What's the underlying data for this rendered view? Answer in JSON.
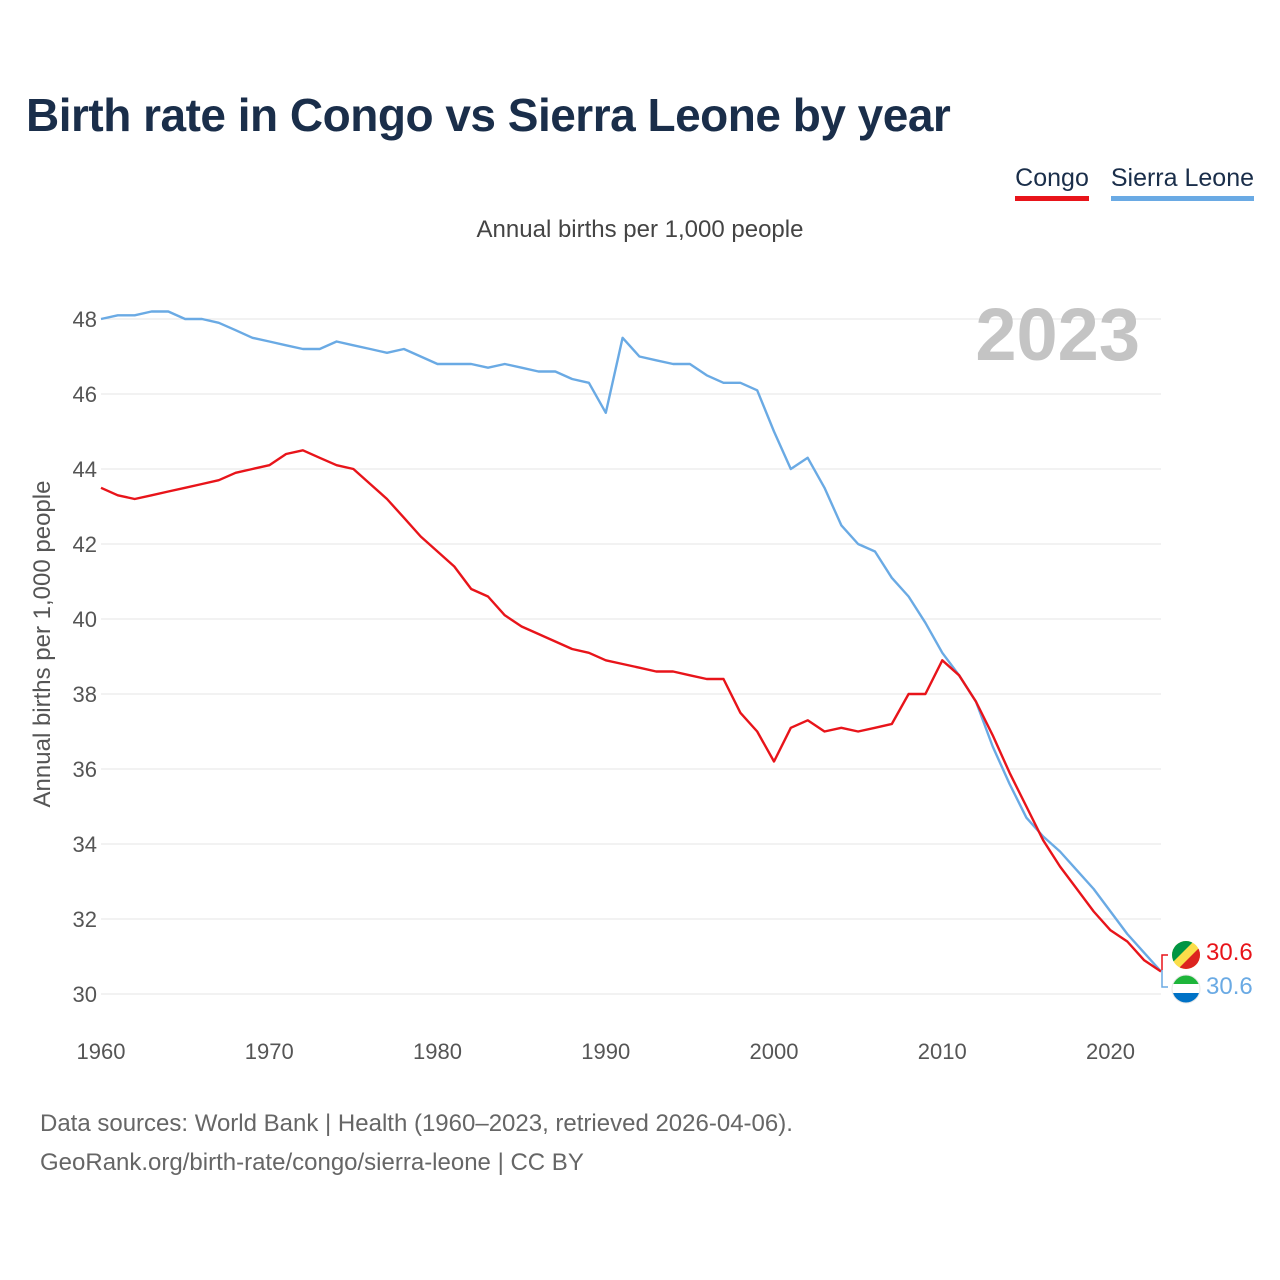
{
  "title": "Birth rate in Congo vs Sierra Leone by year",
  "subtitle": "Annual births per 1,000 people",
  "footer": {
    "line1": "Data sources: World Bank | Health (1960–2023, retrieved 2026-04-06).",
    "line2": "GeoRank.org/birth-rate/congo/sierra-leone | CC BY"
  },
  "colors": {
    "congo": "#e8141a",
    "sierra_leone": "#6aaae4",
    "title": "#1a2e4a",
    "grid": "#e4e4e4"
  },
  "chart_data": {
    "type": "line",
    "title": "Birth rate in Congo vs Sierra Leone by year",
    "subtitle": "Annual births per 1,000 people",
    "xlabel": "",
    "ylabel": "Annual births per 1,000 people",
    "xlim": [
      1960,
      2023
    ],
    "ylim": [
      30,
      48
    ],
    "xticks": [
      1960,
      1970,
      1980,
      1990,
      2000,
      2010,
      2020
    ],
    "yticks": [
      30,
      32,
      34,
      36,
      38,
      40,
      42,
      44,
      46,
      48
    ],
    "year_label": "2023",
    "legend_position": "top-right",
    "grid": true,
    "x": [
      1960,
      1961,
      1962,
      1963,
      1964,
      1965,
      1966,
      1967,
      1968,
      1969,
      1970,
      1971,
      1972,
      1973,
      1974,
      1975,
      1976,
      1977,
      1978,
      1979,
      1980,
      1981,
      1982,
      1983,
      1984,
      1985,
      1986,
      1987,
      1988,
      1989,
      1990,
      1991,
      1992,
      1993,
      1994,
      1995,
      1996,
      1997,
      1998,
      1999,
      2000,
      2001,
      2002,
      2003,
      2004,
      2005,
      2006,
      2007,
      2008,
      2009,
      2010,
      2011,
      2012,
      2013,
      2014,
      2015,
      2016,
      2017,
      2018,
      2019,
      2020,
      2021,
      2022,
      2023
    ],
    "series": [
      {
        "name": "Congo",
        "color": "#e8141a",
        "end_label": "30.6",
        "values": [
          43.5,
          43.3,
          43.2,
          43.3,
          43.4,
          43.5,
          43.6,
          43.7,
          43.9,
          44.0,
          44.1,
          44.4,
          44.5,
          44.3,
          44.1,
          44.0,
          43.6,
          43.2,
          42.7,
          42.2,
          41.8,
          41.4,
          40.8,
          40.6,
          40.1,
          39.8,
          39.6,
          39.4,
          39.2,
          39.1,
          38.9,
          38.8,
          38.7,
          38.6,
          38.6,
          38.5,
          38.4,
          38.4,
          37.5,
          37.0,
          36.2,
          37.1,
          37.3,
          37.0,
          37.1,
          37.0,
          37.1,
          37.2,
          38.0,
          38.0,
          38.9,
          38.5,
          37.8,
          36.9,
          35.9,
          35.0,
          34.1,
          33.4,
          32.8,
          32.2,
          31.7,
          31.4,
          30.9,
          30.6
        ]
      },
      {
        "name": "Sierra Leone",
        "color": "#6aaae4",
        "end_label": "30.6",
        "values": [
          48.0,
          48.1,
          48.1,
          48.2,
          48.2,
          48.0,
          48.0,
          47.9,
          47.7,
          47.5,
          47.4,
          47.3,
          47.2,
          47.2,
          47.4,
          47.3,
          47.2,
          47.1,
          47.2,
          47.0,
          46.8,
          46.8,
          46.8,
          46.7,
          46.8,
          46.7,
          46.6,
          46.6,
          46.4,
          46.3,
          45.5,
          47.5,
          47.0,
          46.9,
          46.8,
          46.8,
          46.5,
          46.3,
          46.3,
          46.1,
          45.0,
          44.0,
          44.3,
          43.5,
          42.5,
          42.0,
          41.8,
          41.1,
          40.6,
          39.9,
          39.1,
          38.5,
          37.8,
          36.6,
          35.6,
          34.7,
          34.2,
          33.8,
          33.3,
          32.8,
          32.2,
          31.6,
          31.1,
          30.6
        ]
      }
    ]
  }
}
